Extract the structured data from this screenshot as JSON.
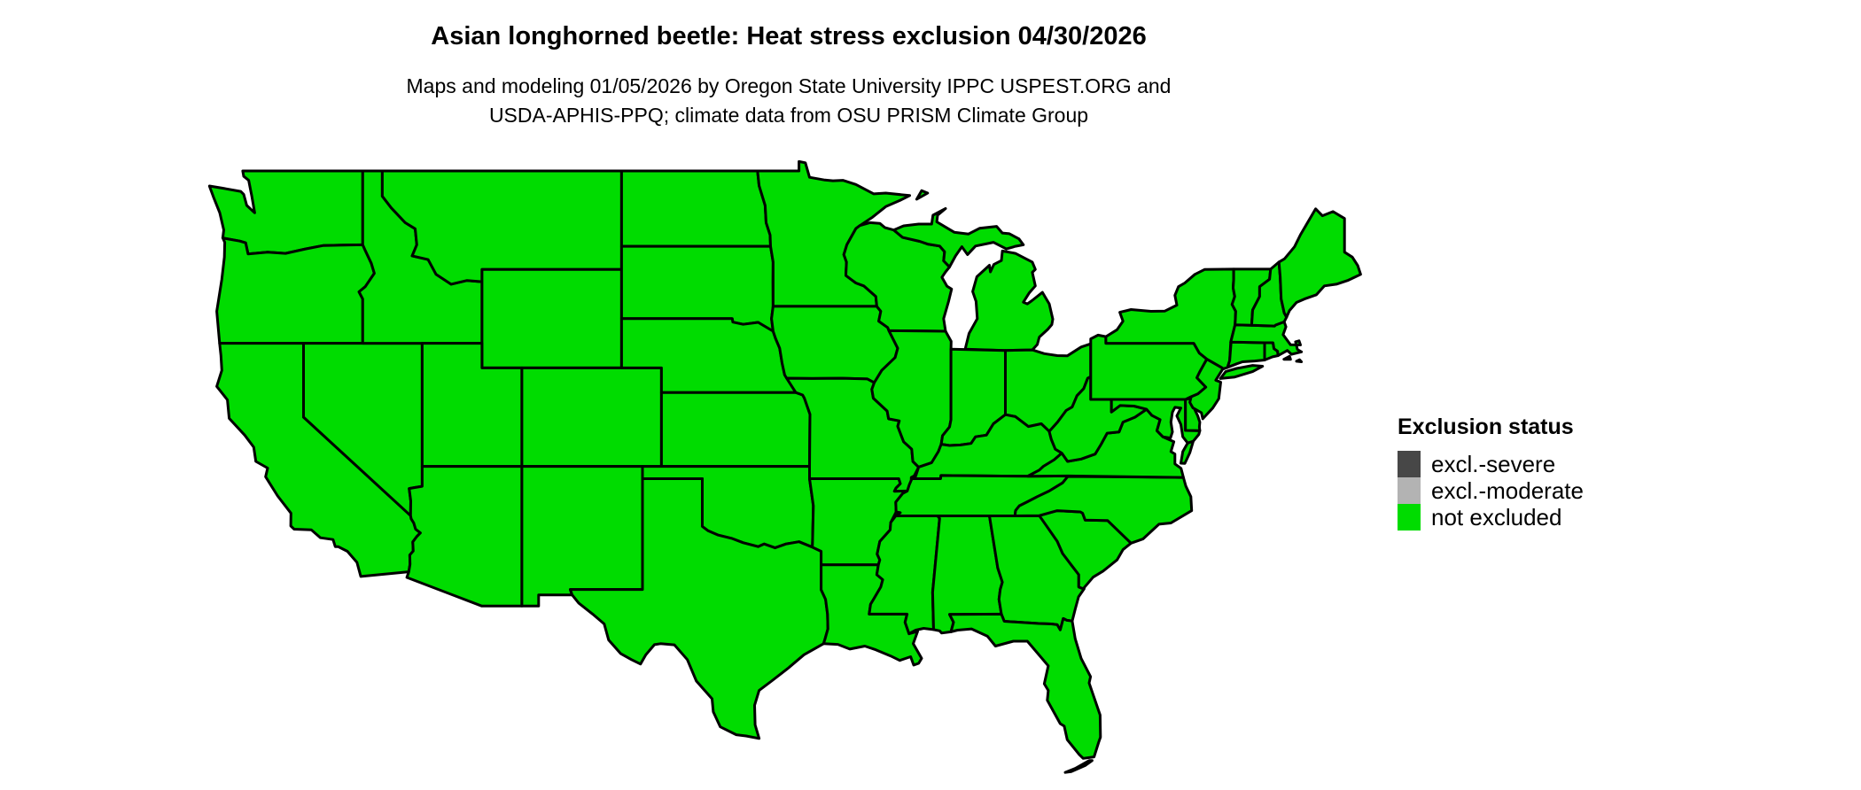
{
  "header": {
    "title": "Asian longhorned beetle: Heat stress exclusion 04/30/2026",
    "subtitle_line1": "Maps and modeling 01/05/2026 by Oregon State University IPPC USPEST.ORG and",
    "subtitle_line2": "USDA-APHIS-PPQ; climate data from OSU PRISM Climate Group"
  },
  "legend": {
    "title": "Exclusion status",
    "items": [
      {
        "status": "excl-severe",
        "label": "excl.-severe",
        "color": "#474747"
      },
      {
        "status": "excl-moderate",
        "label": "excl.-moderate",
        "color": "#b3b3b3"
      },
      {
        "status": "not-excluded",
        "label": "not excluded",
        "color": "#00dc00"
      }
    ]
  },
  "map": {
    "region": "Contiguous United States",
    "border_color": "#000000",
    "states": [
      {
        "id": "WA",
        "name": "Washington",
        "status": "not-excluded"
      },
      {
        "id": "OR",
        "name": "Oregon",
        "status": "not-excluded"
      },
      {
        "id": "CA",
        "name": "California",
        "status": "not-excluded"
      },
      {
        "id": "NV",
        "name": "Nevada",
        "status": "not-excluded"
      },
      {
        "id": "ID",
        "name": "Idaho",
        "status": "not-excluded"
      },
      {
        "id": "MT",
        "name": "Montana",
        "status": "not-excluded"
      },
      {
        "id": "WY",
        "name": "Wyoming",
        "status": "not-excluded"
      },
      {
        "id": "UT",
        "name": "Utah",
        "status": "not-excluded"
      },
      {
        "id": "CO",
        "name": "Colorado",
        "status": "not-excluded"
      },
      {
        "id": "AZ",
        "name": "Arizona",
        "status": "not-excluded"
      },
      {
        "id": "NM",
        "name": "New Mexico",
        "status": "not-excluded"
      },
      {
        "id": "ND",
        "name": "North Dakota",
        "status": "not-excluded"
      },
      {
        "id": "SD",
        "name": "South Dakota",
        "status": "not-excluded"
      },
      {
        "id": "NE",
        "name": "Nebraska",
        "status": "not-excluded"
      },
      {
        "id": "KS",
        "name": "Kansas",
        "status": "not-excluded"
      },
      {
        "id": "OK",
        "name": "Oklahoma",
        "status": "not-excluded"
      },
      {
        "id": "TX",
        "name": "Texas",
        "status": "not-excluded"
      },
      {
        "id": "MN",
        "name": "Minnesota",
        "status": "not-excluded"
      },
      {
        "id": "IA",
        "name": "Iowa",
        "status": "not-excluded"
      },
      {
        "id": "MO",
        "name": "Missouri",
        "status": "not-excluded"
      },
      {
        "id": "AR",
        "name": "Arkansas",
        "status": "not-excluded"
      },
      {
        "id": "LA",
        "name": "Louisiana",
        "status": "not-excluded"
      },
      {
        "id": "WI",
        "name": "Wisconsin",
        "status": "not-excluded"
      },
      {
        "id": "MI",
        "name": "Michigan",
        "status": "not-excluded"
      },
      {
        "id": "IL",
        "name": "Illinois",
        "status": "not-excluded"
      },
      {
        "id": "IN",
        "name": "Indiana",
        "status": "not-excluded"
      },
      {
        "id": "OH",
        "name": "Ohio",
        "status": "not-excluded"
      },
      {
        "id": "KY",
        "name": "Kentucky",
        "status": "not-excluded"
      },
      {
        "id": "TN",
        "name": "Tennessee",
        "status": "not-excluded"
      },
      {
        "id": "MS",
        "name": "Mississippi",
        "status": "not-excluded"
      },
      {
        "id": "AL",
        "name": "Alabama",
        "status": "not-excluded"
      },
      {
        "id": "GA",
        "name": "Georgia",
        "status": "not-excluded"
      },
      {
        "id": "FL",
        "name": "Florida",
        "status": "not-excluded"
      },
      {
        "id": "SC",
        "name": "South Carolina",
        "status": "not-excluded"
      },
      {
        "id": "NC",
        "name": "North Carolina",
        "status": "not-excluded"
      },
      {
        "id": "VA",
        "name": "Virginia",
        "status": "not-excluded"
      },
      {
        "id": "WV",
        "name": "West Virginia",
        "status": "not-excluded"
      },
      {
        "id": "MD",
        "name": "Maryland",
        "status": "not-excluded"
      },
      {
        "id": "DE",
        "name": "Delaware",
        "status": "not-excluded"
      },
      {
        "id": "NJ",
        "name": "New Jersey",
        "status": "not-excluded"
      },
      {
        "id": "PA",
        "name": "Pennsylvania",
        "status": "not-excluded"
      },
      {
        "id": "NY",
        "name": "New York",
        "status": "not-excluded"
      },
      {
        "id": "CT",
        "name": "Connecticut",
        "status": "not-excluded"
      },
      {
        "id": "RI",
        "name": "Rhode Island",
        "status": "not-excluded"
      },
      {
        "id": "MA",
        "name": "Massachusetts",
        "status": "not-excluded"
      },
      {
        "id": "VT",
        "name": "Vermont",
        "status": "not-excluded"
      },
      {
        "id": "NH",
        "name": "New Hampshire",
        "status": "not-excluded"
      },
      {
        "id": "ME",
        "name": "Maine",
        "status": "not-excluded"
      }
    ]
  }
}
